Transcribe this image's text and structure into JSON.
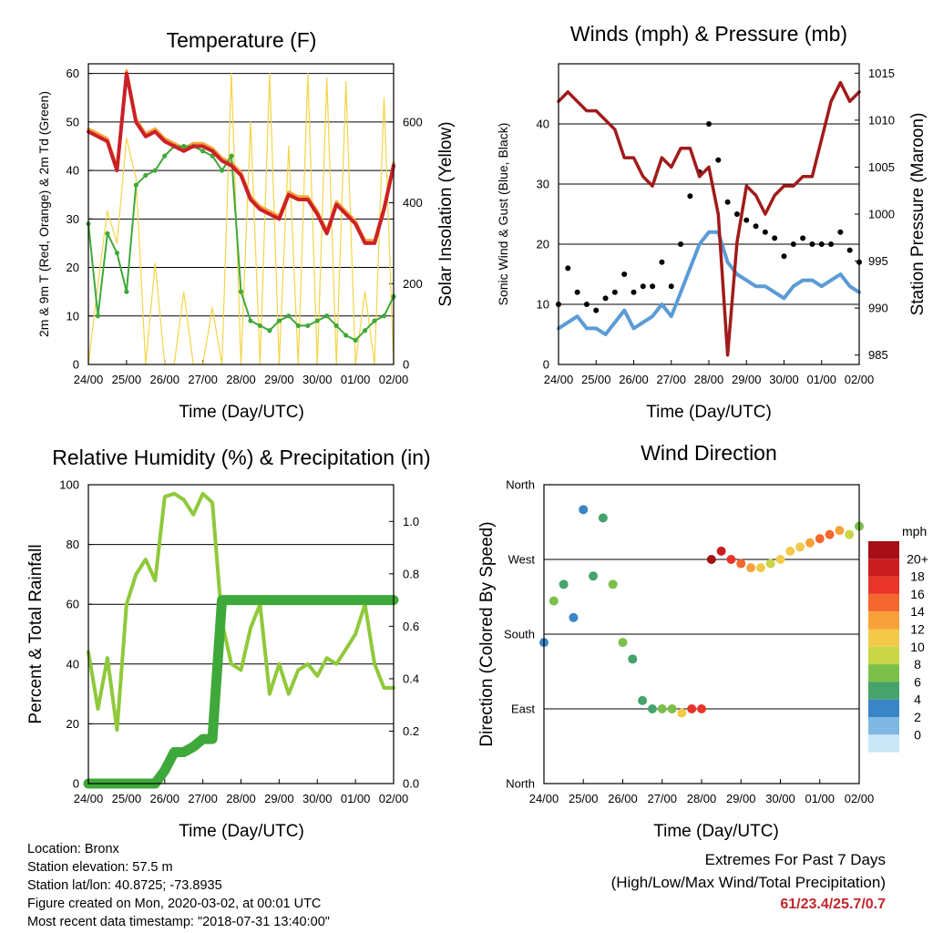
{
  "x_ticks": [
    "24/00",
    "25/00",
    "26/00",
    "27/00",
    "28/00",
    "29/00",
    "30/00",
    "01/00",
    "02/00"
  ],
  "x_label": "Time (Day/UTC)",
  "colors": {
    "temp": "#cc2027",
    "temp9m": "#f4a53a",
    "dew": "#3fa83a",
    "solar": "#f5d447",
    "wind": "#5b9bd5",
    "gust": "#000000",
    "pressure": "#a11b1b",
    "rh": "#8fc93a",
    "precip": "#3fa83a"
  },
  "chart_data": [
    {
      "type": "line",
      "title": "Temperature (F)",
      "ylabel": "2m & 9m T (Red, Orange) & 2m Td (Green)",
      "y2label": "Solar Insolation (Yellow)",
      "ylim": [
        0,
        62
      ],
      "y_ticks": [
        "0",
        "10",
        "20",
        "30",
        "40",
        "50",
        "60"
      ],
      "y2lim": [
        0,
        744
      ],
      "y2_ticks": [
        "0",
        "200",
        "400",
        "600"
      ],
      "x": [
        0,
        0.25,
        0.5,
        0.75,
        1,
        1.25,
        1.5,
        1.75,
        2,
        2.25,
        2.5,
        2.75,
        3,
        3.25,
        3.5,
        3.75,
        4,
        4.25,
        4.5,
        4.75,
        5,
        5.25,
        5.5,
        5.75,
        6,
        6.25,
        6.5,
        6.75,
        7,
        7.25,
        7.5,
        7.75,
        8
      ],
      "series": [
        {
          "name": "2m T",
          "axis": "left",
          "values": [
            48,
            47,
            46,
            40,
            60,
            50,
            47,
            48,
            46,
            45,
            44,
            45,
            45,
            44,
            42,
            41,
            39,
            34,
            32,
            31,
            30,
            35,
            34,
            34,
            31,
            27,
            33,
            31,
            29,
            25,
            25,
            32,
            41
          ]
        },
        {
          "name": "2m Td",
          "axis": "left",
          "values": [
            29,
            10,
            27,
            23,
            15,
            37,
            39,
            40,
            43,
            45,
            45,
            45,
            44,
            43,
            40,
            43,
            15,
            9,
            8,
            7,
            9,
            10,
            8,
            8,
            9,
            10,
            8,
            6,
            5,
            7,
            9,
            10,
            14
          ]
        },
        {
          "name": "Solar Insolation",
          "axis": "right",
          "values": [
            0,
            200,
            380,
            300,
            560,
            460,
            0,
            250,
            0,
            0,
            180,
            0,
            0,
            140,
            0,
            720,
            0,
            600,
            0,
            720,
            0,
            540,
            0,
            720,
            0,
            710,
            0,
            700,
            0,
            180,
            0,
            660,
            0
          ]
        }
      ]
    },
    {
      "type": "line",
      "title": "Winds (mph) & Pressure (mb)",
      "ylabel": "Sonic Wind & Gust (Blue, Black)",
      "y2label": "Station Pressure (Maroon)",
      "ylim": [
        0,
        50
      ],
      "y_ticks": [
        "0",
        "10",
        "20",
        "30",
        "40"
      ],
      "y2lim": [
        984,
        1016
      ],
      "y2_ticks": [
        "985",
        "990",
        "995",
        "1000",
        "1005",
        "1010",
        "1015"
      ],
      "x": [
        0,
        0.25,
        0.5,
        0.75,
        1,
        1.25,
        1.5,
        1.75,
        2,
        2.25,
        2.5,
        2.75,
        3,
        3.25,
        3.5,
        3.75,
        4,
        4.25,
        4.5,
        4.75,
        5,
        5.25,
        5.5,
        5.75,
        6,
        6.25,
        6.5,
        6.75,
        7,
        7.25,
        7.5,
        7.75,
        8
      ],
      "series": [
        {
          "name": "Sonic Wind",
          "axis": "left",
          "values": [
            6,
            7,
            8,
            6,
            6,
            5,
            7,
            9,
            6,
            7,
            8,
            10,
            8,
            12,
            16,
            20,
            22,
            22,
            17,
            15,
            14,
            13,
            13,
            12,
            11,
            13,
            14,
            14,
            13,
            14,
            15,
            13,
            12
          ]
        },
        {
          "name": "Sonic Gust",
          "axis": "left",
          "values": [
            10,
            16,
            12,
            10,
            9,
            11,
            12,
            15,
            12,
            13,
            13,
            17,
            13,
            20,
            28,
            32,
            40,
            34,
            27,
            25,
            24,
            23,
            22,
            21,
            18,
            20,
            21,
            20,
            20,
            20,
            22,
            19,
            17
          ]
        },
        {
          "name": "Station Pressure",
          "axis": "right",
          "values": [
            1012,
            1013,
            1012,
            1011,
            1011,
            1010,
            1009,
            1006,
            1006,
            1004,
            1003,
            1006,
            1005,
            1007,
            1007,
            1004,
            1005,
            1000,
            985,
            997,
            1003,
            1002,
            1000,
            1002,
            1003,
            1003,
            1004,
            1004,
            1008,
            1012,
            1014,
            1012,
            1013
          ]
        }
      ]
    },
    {
      "type": "line",
      "title": "Relative Humidity (%) & Precipitation (in)",
      "ylabel": "Percent & Total Rainfall",
      "ylim": [
        0,
        100
      ],
      "y_ticks": [
        "0",
        "20",
        "40",
        "60",
        "80",
        "100"
      ],
      "y2lim": [
        0,
        1.14
      ],
      "y2_ticks": [
        "0.0",
        "0.2",
        "0.4",
        "0.6",
        "0.8",
        "1.0"
      ],
      "x": [
        0,
        0.25,
        0.5,
        0.75,
        1,
        1.25,
        1.5,
        1.75,
        2,
        2.25,
        2.5,
        2.75,
        3,
        3.25,
        3.5,
        3.75,
        4,
        4.25,
        4.5,
        4.75,
        5,
        5.25,
        5.5,
        5.75,
        6,
        6.25,
        6.5,
        6.75,
        7,
        7.25,
        7.5,
        7.75,
        8
      ],
      "series": [
        {
          "name": "Relative Humidity",
          "axis": "left",
          "values": [
            44,
            25,
            42,
            18,
            60,
            70,
            75,
            68,
            96,
            97,
            95,
            90,
            97,
            94,
            54,
            40,
            38,
            52,
            60,
            30,
            40,
            30,
            38,
            40,
            36,
            42,
            40,
            45,
            50,
            60,
            40,
            32,
            32
          ]
        },
        {
          "name": "Total Precipitation",
          "axis": "right",
          "values": [
            0,
            0,
            0,
            0,
            0,
            0,
            0,
            0,
            0.05,
            0.12,
            0.12,
            0.14,
            0.17,
            0.17,
            0.7,
            0.7,
            0.7,
            0.7,
            0.7,
            0.7,
            0.7,
            0.7,
            0.7,
            0.7,
            0.7,
            0.7,
            0.7,
            0.7,
            0.7,
            0.7,
            0.7,
            0.7,
            0.7
          ]
        }
      ]
    },
    {
      "type": "scatter",
      "title": "Wind Direction",
      "ylabel": "Direction (Colored By Speed)",
      "y_ticks": [
        "North",
        "East",
        "South",
        "West",
        "North"
      ],
      "ylim": [
        0,
        360
      ],
      "legend_title": "mph",
      "legend_labels": [
        "20+",
        "18",
        "16",
        "14",
        "12",
        "10",
        "8",
        "6",
        "4",
        "2",
        "0"
      ],
      "legend_colors": [
        "#a50f15",
        "#c91d1f",
        "#e9342a",
        "#f4672e",
        "#f8a13a",
        "#f3c94a",
        "#c9d646",
        "#7cbf4a",
        "#45a36b",
        "#3a85c7",
        "#7fb8e3",
        "#c9e6f6"
      ],
      "x": [
        0,
        0.25,
        0.5,
        0.75,
        1,
        1.25,
        1.5,
        1.75,
        2,
        2.25,
        2.5,
        2.75,
        3,
        3.25,
        3.5,
        3.75,
        4,
        4.25,
        4.5,
        4.75,
        5,
        5.25,
        5.5,
        5.75,
        6,
        6.25,
        6.5,
        6.75,
        7,
        7.25,
        7.5,
        7.75,
        8
      ],
      "values": [
        170,
        220,
        240,
        200,
        330,
        250,
        320,
        240,
        170,
        150,
        100,
        90,
        90,
        90,
        85,
        90,
        90,
        270,
        280,
        270,
        265,
        260,
        260,
        265,
        270,
        280,
        285,
        290,
        295,
        300,
        305,
        300,
        310
      ],
      "speeds": [
        4,
        8,
        6,
        3,
        4,
        6,
        5,
        7,
        8,
        6,
        5,
        5,
        7,
        8,
        12,
        18,
        18,
        22,
        20,
        18,
        15,
        14,
        12,
        10,
        12,
        12,
        12,
        14,
        15,
        16,
        14,
        10,
        8
      ]
    }
  ],
  "info": {
    "location": "Location: Bronx",
    "elevation": "Station elevation: 57.5 m",
    "latlon": "Station lat/lon: 40.8725; -73.8935",
    "created": "Figure created on Mon, 2020-03-02, at 00:01 UTC",
    "timestamp": "Most recent data timestamp: \"2018-07-31 13:40:00\""
  },
  "extremes": {
    "title": "Extremes For Past 7 Days",
    "subtitle": "(High/Low/Max Wind/Total Precipitation)",
    "values": "61/23.4/25.7/0.7"
  }
}
